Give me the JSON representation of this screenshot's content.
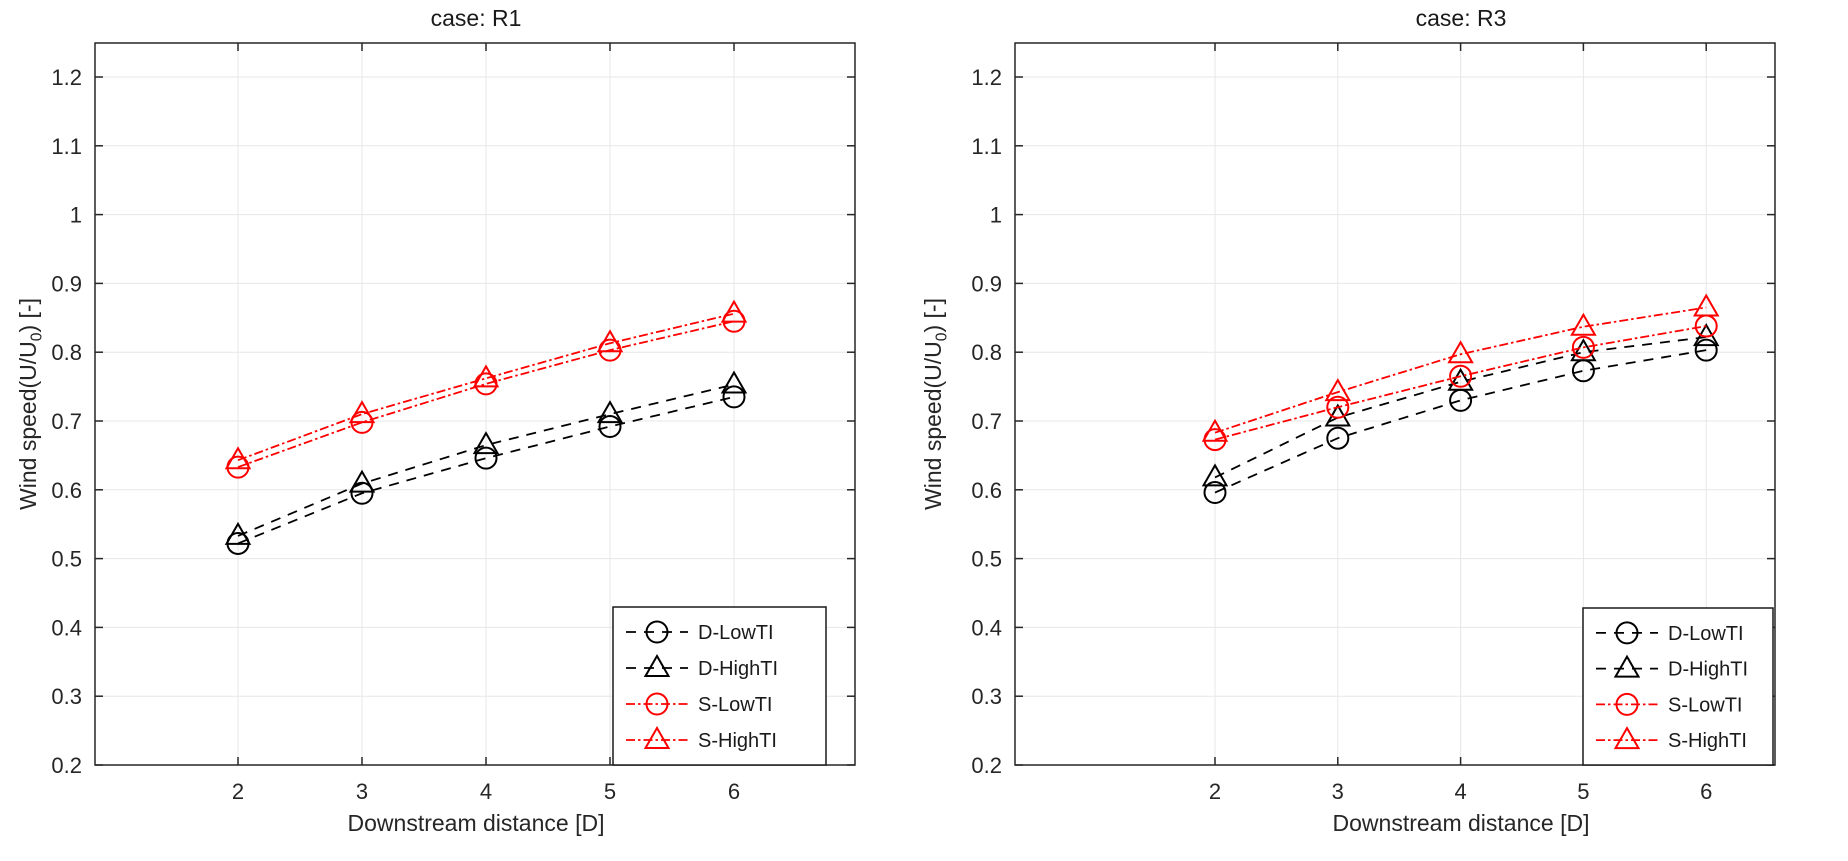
{
  "colors": {
    "background": "#ffffff",
    "black_series": "#000000",
    "red_series": "#ff0000",
    "grid": "#e7e7e7",
    "axis_frame": "#262626",
    "tick_text": "#262626",
    "legend_border": "#1a1a1a"
  },
  "chart_data": [
    {
      "type": "line",
      "title": "case: R1",
      "xlabel": "Downstream distance [D]",
      "ylabel": {
        "pre": "Wind speed(U/U",
        "sub": "0",
        "post": ") [-]"
      },
      "x": [
        2,
        3,
        4,
        5,
        6
      ],
      "xtick_labels": [
        "2",
        "3",
        "4",
        "5",
        "6"
      ],
      "ytick_values": [
        0.2,
        0.3,
        0.4,
        0.5,
        0.6,
        0.7,
        0.8,
        0.9,
        1.0,
        1.1,
        1.2
      ],
      "ytick_labels": [
        "0.2",
        "0.3",
        "0.4",
        "0.5",
        "0.6",
        "0.7",
        "0.8",
        "0.9",
        "1",
        "1.1",
        "1.2"
      ],
      "xlim": [
        0.85,
        7.0
      ],
      "ylim": [
        0.2,
        1.25
      ],
      "grid": true,
      "legend_position": "inside-bottom-right",
      "series": [
        {
          "name": "D-LowTI",
          "color": "#000000",
          "marker": "circle",
          "linestyle": "dashed",
          "values": [
            0.522,
            0.595,
            0.646,
            0.692,
            0.735
          ]
        },
        {
          "name": "D-HighTI",
          "color": "#000000",
          "marker": "triangle",
          "linestyle": "dashed",
          "values": [
            0.533,
            0.609,
            0.665,
            0.71,
            0.753
          ]
        },
        {
          "name": "S-LowTI",
          "color": "#ff0000",
          "marker": "circle",
          "linestyle": "dashdot",
          "values": [
            0.633,
            0.698,
            0.754,
            0.803,
            0.845
          ]
        },
        {
          "name": "S-HighTI",
          "color": "#ff0000",
          "marker": "triangle",
          "linestyle": "dashdot",
          "values": [
            0.643,
            0.71,
            0.762,
            0.813,
            0.856
          ]
        }
      ]
    },
    {
      "type": "line",
      "title": "case: R3",
      "xlabel": "Downstream distance [D]",
      "ylabel": {
        "pre": "Wind speed(U/U",
        "sub": "0",
        "post": ") [-]"
      },
      "x": [
        2,
        3,
        4,
        5,
        6
      ],
      "xtick_labels": [
        "2",
        "3",
        "4",
        "5",
        "6"
      ],
      "ytick_values": [
        0.2,
        0.3,
        0.4,
        0.5,
        0.6,
        0.7,
        0.8,
        0.9,
        1.0,
        1.1,
        1.2
      ],
      "ytick_labels": [
        "0.2",
        "0.3",
        "0.4",
        "0.5",
        "0.6",
        "0.7",
        "0.8",
        "0.9",
        "1",
        "1.1",
        "1.2"
      ],
      "xlim": [
        0.4,
        6.55
      ],
      "ylim": [
        0.2,
        1.25
      ],
      "grid": true,
      "legend_position": "inside-bottom-right",
      "series": [
        {
          "name": "D-LowTI",
          "color": "#000000",
          "marker": "circle",
          "linestyle": "dashed",
          "values": [
            0.596,
            0.675,
            0.73,
            0.773,
            0.803
          ]
        },
        {
          "name": "D-HighTI",
          "color": "#000000",
          "marker": "triangle",
          "linestyle": "dashed",
          "values": [
            0.618,
            0.705,
            0.757,
            0.8,
            0.822
          ]
        },
        {
          "name": "S-LowTI",
          "color": "#ff0000",
          "marker": "circle",
          "linestyle": "dashdot",
          "values": [
            0.673,
            0.72,
            0.765,
            0.807,
            0.838
          ]
        },
        {
          "name": "S-HighTI",
          "color": "#ff0000",
          "marker": "triangle",
          "linestyle": "dashdot",
          "values": [
            0.683,
            0.742,
            0.797,
            0.837,
            0.865
          ]
        }
      ]
    }
  ]
}
